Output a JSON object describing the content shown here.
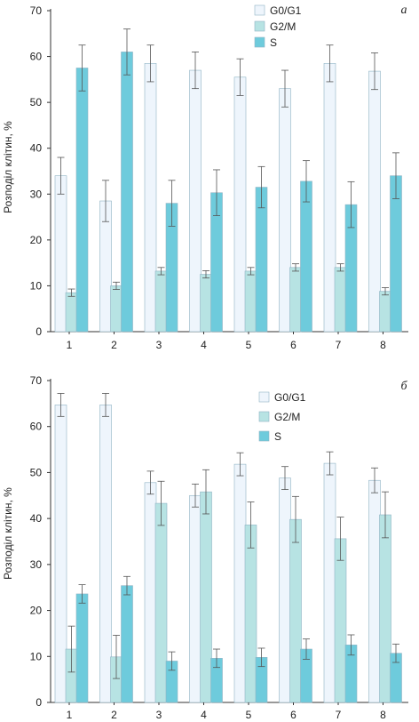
{
  "colors": {
    "G0/G1": "#eef5fc",
    "G2/M": "#b7e3e3",
    "S": "#6ecbdc",
    "stroke": "#8fb3c4",
    "axis": "#333333",
    "error": "#555555"
  },
  "chart_data": [
    {
      "type": "bar",
      "panel_label": "а",
      "ylabel": "Розподіл клітин, %",
      "ylim": [
        0,
        70
      ],
      "yticks": [
        0,
        10,
        20,
        30,
        40,
        50,
        60,
        70
      ],
      "categories": [
        "1",
        "2",
        "3",
        "4",
        "5",
        "6",
        "7",
        "8"
      ],
      "legend_position": "top-right",
      "series": [
        {
          "name": "G0/G1",
          "color": "#eef5fc",
          "values": [
            34,
            28.5,
            58.5,
            57,
            55.5,
            53,
            58.5,
            56.8
          ],
          "errors": [
            4,
            4.5,
            4,
            4,
            4,
            4,
            4,
            4
          ]
        },
        {
          "name": "G2/M",
          "color": "#b7e3e3",
          "values": [
            8.5,
            10,
            13.2,
            12.5,
            13.2,
            14,
            14,
            8.8
          ],
          "errors": [
            0.8,
            0.8,
            0.8,
            0.8,
            0.8,
            0.8,
            0.8,
            0.8
          ]
        },
        {
          "name": "S",
          "color": "#6ecbdc",
          "values": [
            57.5,
            61,
            28,
            30.3,
            31.5,
            32.8,
            27.7,
            34
          ],
          "errors": [
            5,
            5,
            5,
            5,
            4.5,
            4.5,
            5,
            5
          ]
        }
      ]
    },
    {
      "type": "bar",
      "panel_label": "б",
      "ylabel": "Розподіл клітин, %",
      "ylim": [
        0,
        70
      ],
      "yticks": [
        0,
        10,
        20,
        30,
        40,
        50,
        60,
        70
      ],
      "categories": [
        "1",
        "2",
        "3",
        "4",
        "5",
        "6",
        "7",
        "8"
      ],
      "legend_position": "top-right",
      "series": [
        {
          "name": "G0/G1",
          "color": "#eef5fc",
          "values": [
            64.7,
            64.7,
            47.8,
            45,
            51.8,
            48.8,
            52,
            48.3
          ],
          "errors": [
            2.5,
            2.5,
            2.5,
            2.5,
            2.5,
            2.5,
            2.5,
            2.7
          ]
        },
        {
          "name": "G2/M",
          "color": "#b7e3e3",
          "values": [
            11.6,
            9.9,
            43.3,
            45.8,
            38.6,
            39.8,
            35.6,
            40.8
          ],
          "errors": [
            5,
            4.7,
            4.8,
            4.8,
            5,
            5,
            4.7,
            5
          ]
        },
        {
          "name": "S",
          "color": "#6ecbdc",
          "values": [
            23.6,
            25.4,
            9,
            9.6,
            9.8,
            11.6,
            12.5,
            10.7
          ],
          "errors": [
            2,
            2,
            2,
            2,
            2,
            2.2,
            2.2,
            2
          ]
        }
      ]
    }
  ]
}
